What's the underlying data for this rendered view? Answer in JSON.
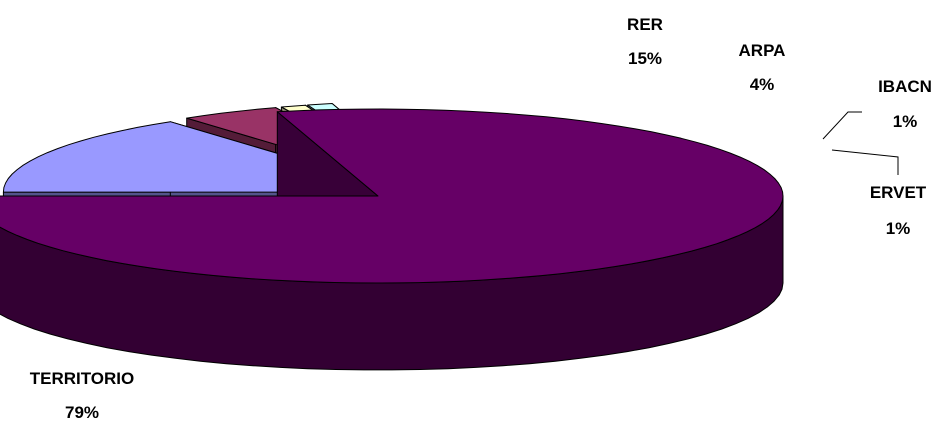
{
  "chart_data": {
    "type": "pie",
    "three_d": true,
    "exploded": true,
    "slices": [
      {
        "label": "RER",
        "value": 15,
        "value_label": "15%",
        "color": "#9999ff"
      },
      {
        "label": "ARPA",
        "value": 4,
        "value_label": "4%",
        "color": "#993366"
      },
      {
        "label": "IBACN",
        "value": 1,
        "value_label": "1%",
        "color": "#ffffcc"
      },
      {
        "label": "ERVET",
        "value": 1,
        "value_label": "1%",
        "color": "#ccffff"
      },
      {
        "label": "TERRITORIO",
        "value": 79,
        "value_label": "79%",
        "color": "#660066"
      }
    ],
    "legend": "none",
    "data_labels": "outside"
  }
}
